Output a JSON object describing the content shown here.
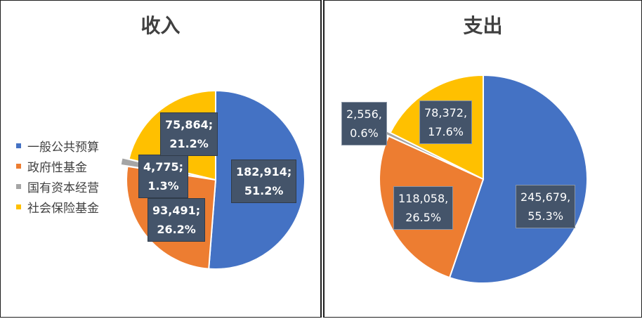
{
  "colors": [
    "#4472c4",
    "#ed7d31",
    "#a5a5a5",
    "#ffc000"
  ],
  "legend": [
    "一般公共预算",
    "政府性基金",
    "国有资本经营",
    "社会保险基金"
  ],
  "chart_data": [
    {
      "type": "pie",
      "title": "收入",
      "categories": [
        "一般公共预算",
        "政府性基金",
        "国有资本经营",
        "社会保险基金"
      ],
      "values": [
        182914,
        93491,
        4775,
        75864
      ],
      "percents": [
        "51.2%",
        "26.2%",
        "1.3%",
        "21.2%"
      ],
      "labels": [
        {
          "value": "182,914;",
          "percent": "51.2%"
        },
        {
          "value": "93,491;",
          "percent": "26.2%"
        },
        {
          "value": "4,775;",
          "percent": "1.3%"
        },
        {
          "value": "75,864;",
          "percent": "21.2%"
        }
      ],
      "legend_position": "left"
    },
    {
      "type": "pie",
      "title": "支出",
      "categories": [
        "一般公共预算",
        "政府性基金",
        "国有资本经营",
        "社会保险基金"
      ],
      "values": [
        245679,
        118058,
        2556,
        78372
      ],
      "percents": [
        "55.3%",
        "26.5%",
        "0.6%",
        "17.6%"
      ],
      "labels": [
        {
          "value": "245,679,",
          "percent": "55.3%"
        },
        {
          "value": "118,058,",
          "percent": "26.5%"
        },
        {
          "value": "2,556,",
          "percent": "0.6%"
        },
        {
          "value": "78,372,",
          "percent": "17.6%"
        }
      ]
    }
  ]
}
